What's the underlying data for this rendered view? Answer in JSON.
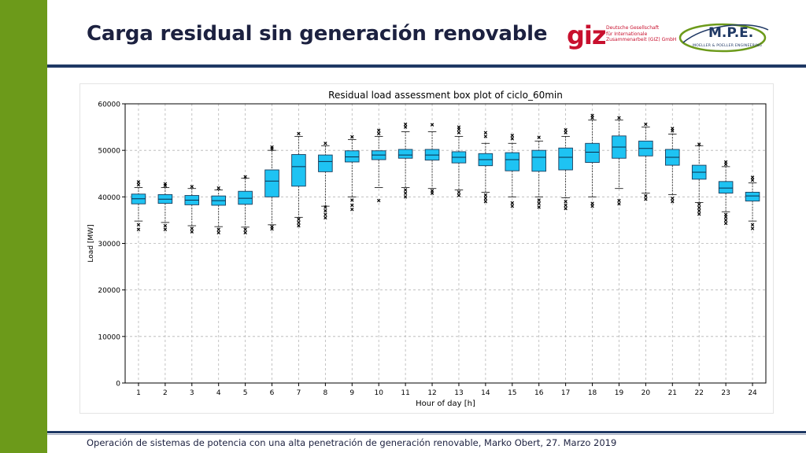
{
  "slide": {
    "title": "Carga residual sin generación renovable",
    "footer": "Operación de sistemas de potencia con una alta penetración de generación renovable, Marko Obert, 27. Marzo 2019"
  },
  "logos": {
    "giz_word": "giz",
    "giz_lines": [
      "Deutsche Gesellschaft",
      "für Internationale",
      "Zusammenarbeit (GIZ) GmbH"
    ],
    "mpe_word": "M.P.E.",
    "mpe_sub": "MOELLER & POELLER ENGINEERING"
  },
  "colors": {
    "side_bar": "#6c9a1a",
    "rule": "#1f3864",
    "box_fill": "#1ec3f3",
    "giz_red": "#c8102e"
  },
  "chart_data": {
    "type": "box",
    "title": "Residual load assessment box plot of ciclo_60min",
    "xlabel": "Hour of day [h]",
    "ylabel": "Load [MW]",
    "ylim": [
      0,
      60000
    ],
    "yticks": [
      0,
      10000,
      20000,
      30000,
      40000,
      50000,
      60000
    ],
    "categories": [
      "1",
      "2",
      "3",
      "4",
      "5",
      "6",
      "7",
      "8",
      "9",
      "10",
      "11",
      "12",
      "13",
      "14",
      "15",
      "16",
      "17",
      "18",
      "19",
      "20",
      "21",
      "22",
      "23",
      "24"
    ],
    "grid": true,
    "boxes": [
      {
        "whislo": 34800,
        "q1": 38500,
        "med": 39600,
        "q3": 40600,
        "whishi": 42000,
        "fliers": [
          33000,
          34000,
          42600,
          43200
        ]
      },
      {
        "whislo": 34500,
        "q1": 38600,
        "med": 39500,
        "q3": 40500,
        "whishi": 42000,
        "fliers": [
          33000,
          33800,
          42400,
          42800
        ]
      },
      {
        "whislo": 33800,
        "q1": 38300,
        "med": 39300,
        "q3": 40300,
        "whishi": 41800,
        "fliers": [
          32500,
          33200,
          42200
        ]
      },
      {
        "whislo": 33600,
        "q1": 38200,
        "med": 39200,
        "q3": 40200,
        "whishi": 41500,
        "fliers": [
          32300,
          33000,
          41900
        ]
      },
      {
        "whislo": 33500,
        "q1": 38400,
        "med": 39700,
        "q3": 41200,
        "whishi": 44000,
        "fliers": [
          32300,
          33000,
          44300
        ]
      },
      {
        "whislo": 34000,
        "q1": 40000,
        "med": 43400,
        "q3": 45800,
        "whishi": 50000,
        "fliers": [
          33100,
          33600,
          50300,
          50700
        ]
      },
      {
        "whislo": 35600,
        "q1": 42300,
        "med": 46500,
        "q3": 49100,
        "whishi": 53000,
        "fliers": [
          33800,
          34500,
          35200,
          53600
        ]
      },
      {
        "whislo": 38000,
        "q1": 45400,
        "med": 47600,
        "q3": 49000,
        "whishi": 51000,
        "fliers": [
          35500,
          36200,
          37000,
          37800,
          51500
        ]
      },
      {
        "whislo": 40000,
        "q1": 47500,
        "med": 48600,
        "q3": 49900,
        "whishi": 52300,
        "fliers": [
          37300,
          38200,
          39300,
          52900
        ]
      },
      {
        "whislo": 42000,
        "q1": 48000,
        "med": 49000,
        "q3": 49900,
        "whishi": 53000,
        "fliers": [
          39200,
          53600,
          54300
        ]
      },
      {
        "whislo": 42000,
        "q1": 48300,
        "med": 49000,
        "q3": 50200,
        "whishi": 54000,
        "fliers": [
          40000,
          40800,
          41500,
          55000,
          55600
        ]
      },
      {
        "whislo": 41800,
        "q1": 47900,
        "med": 49000,
        "q3": 50200,
        "whishi": 54000,
        "fliers": [
          40800,
          41300,
          55500
        ]
      },
      {
        "whislo": 41500,
        "q1": 47300,
        "med": 48500,
        "q3": 49700,
        "whishi": 53000,
        "fliers": [
          40300,
          41000,
          53800,
          54500,
          55000
        ]
      },
      {
        "whislo": 41000,
        "q1": 46700,
        "med": 48000,
        "q3": 49300,
        "whishi": 51500,
        "fliers": [
          39000,
          39700,
          40400,
          53000,
          53800
        ]
      },
      {
        "whislo": 40000,
        "q1": 45600,
        "med": 48000,
        "q3": 49500,
        "whishi": 51500,
        "fliers": [
          38000,
          38700,
          52500,
          53200
        ]
      },
      {
        "whislo": 40000,
        "q1": 45500,
        "med": 48500,
        "q3": 50000,
        "whishi": 52000,
        "fliers": [
          37800,
          38600,
          39300,
          52800
        ]
      },
      {
        "whislo": 39800,
        "q1": 45800,
        "med": 48500,
        "q3": 50500,
        "whishi": 53000,
        "fliers": [
          37500,
          38200,
          39000,
          53800,
          54400
        ]
      },
      {
        "whislo": 40000,
        "q1": 47400,
        "med": 49600,
        "q3": 51500,
        "whishi": 56500,
        "fliers": [
          38000,
          38600,
          57000,
          57500
        ]
      },
      {
        "whislo": 41800,
        "q1": 48300,
        "med": 50700,
        "q3": 53100,
        "whishi": 56500,
        "fliers": [
          38500,
          39200,
          57000
        ]
      },
      {
        "whislo": 40800,
        "q1": 48800,
        "med": 50400,
        "q3": 52000,
        "whishi": 55000,
        "fliers": [
          39500,
          40200,
          55600
        ]
      },
      {
        "whislo": 40500,
        "q1": 46800,
        "med": 48500,
        "q3": 50200,
        "whishi": 53500,
        "fliers": [
          39000,
          39700,
          54200,
          54700
        ]
      },
      {
        "whislo": 38800,
        "q1": 43800,
        "med": 45300,
        "q3": 46800,
        "whishi": 51000,
        "fliers": [
          36300,
          37000,
          37700,
          38400,
          51300
        ]
      },
      {
        "whislo": 36800,
        "q1": 40800,
        "med": 41900,
        "q3": 43300,
        "whishi": 46500,
        "fliers": [
          34300,
          35000,
          35700,
          36200,
          47000,
          47500
        ]
      },
      {
        "whislo": 34800,
        "q1": 39100,
        "med": 40200,
        "q3": 41000,
        "whishi": 43000,
        "fliers": [
          33200,
          34000,
          43600,
          44200
        ]
      }
    ]
  }
}
